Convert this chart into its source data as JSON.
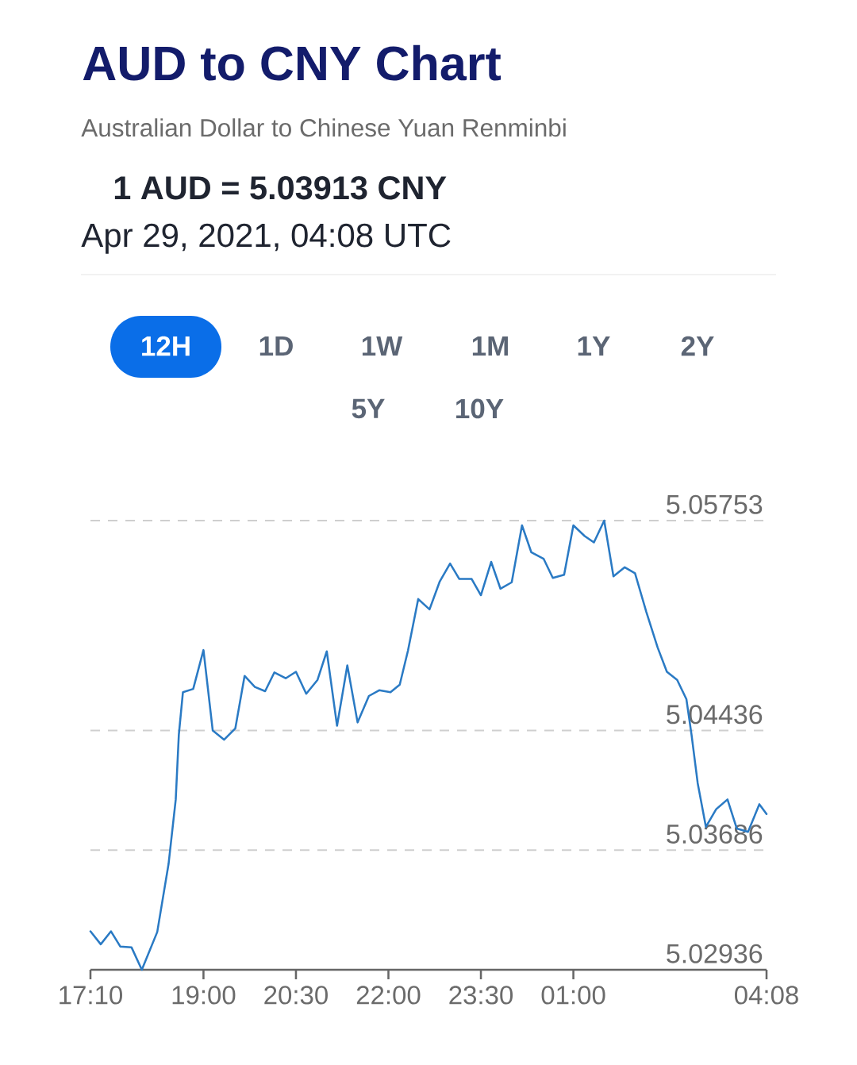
{
  "chart_data": {
    "type": "line",
    "title": "AUD to CNY Chart",
    "subtitle": "Australian Dollar to Chinese Yuan Renminbi",
    "annotations": [
      "1 AUD = 5.03913 CNY",
      "Apr 29, 2021, 04:08 UTC",
      "12H",
      "1D",
      "1W",
      "1M",
      "1Y",
      "2Y",
      "5Y",
      "10Y"
    ],
    "x": [
      "2021-04-28T17:10",
      "2021-04-28T17:20",
      "2021-04-28T17:30",
      "2021-04-28T17:39",
      "2021-04-28T17:50",
      "2021-04-28T18:00",
      "2021-04-28T18:15",
      "2021-04-28T18:26",
      "2021-04-28T18:33",
      "2021-04-28T18:36",
      "2021-04-28T18:40",
      "2021-04-28T18:50",
      "2021-04-28T19:00",
      "2021-04-28T19:09",
      "2021-04-28T19:20",
      "2021-04-28T19:31",
      "2021-04-28T19:40",
      "2021-04-28T19:50",
      "2021-04-28T20:00",
      "2021-04-28T20:09",
      "2021-04-28T20:20",
      "2021-04-28T20:30",
      "2021-04-28T20:40",
      "2021-04-28T20:51",
      "2021-04-28T21:00",
      "2021-04-28T21:10",
      "2021-04-28T21:20",
      "2021-04-28T21:30",
      "2021-04-28T21:41",
      "2021-04-28T21:51",
      "2021-04-28T22:02",
      "2021-04-28T22:11",
      "2021-04-28T22:19",
      "2021-04-28T22:29",
      "2021-04-28T22:40",
      "2021-04-28T22:50",
      "2021-04-28T23:00",
      "2021-04-28T23:09",
      "2021-04-28T23:21",
      "2021-04-28T23:30",
      "2021-04-28T23:40",
      "2021-04-28T23:49",
      "2021-04-29T00:00",
      "2021-04-29T00:10",
      "2021-04-29T00:19",
      "2021-04-29T00:31",
      "2021-04-29T00:40",
      "2021-04-29T00:51",
      "2021-04-29T01:00",
      "2021-04-29T01:11",
      "2021-04-29T01:20",
      "2021-04-29T01:30",
      "2021-04-29T01:39",
      "2021-04-29T01:50",
      "2021-04-29T02:00",
      "2021-04-29T02:11",
      "2021-04-29T02:22",
      "2021-04-29T02:31",
      "2021-04-29T02:41",
      "2021-04-29T02:50",
      "2021-04-29T02:55",
      "2021-04-29T03:01",
      "2021-04-29T03:09",
      "2021-04-29T03:19",
      "2021-04-29T03:30",
      "2021-04-29T03:39",
      "2021-04-29T03:50",
      "2021-04-29T04:01",
      "2021-04-29T04:08"
    ],
    "values": [
      5.03177,
      5.03096,
      5.03177,
      5.03082,
      5.03076,
      5.02936,
      5.03173,
      5.03599,
      5.04004,
      5.0441,
      5.04677,
      5.04697,
      5.04941,
      5.04436,
      5.04379,
      5.0445,
      5.04779,
      5.0471,
      5.04683,
      5.04801,
      5.04764,
      5.04805,
      5.04667,
      5.04754,
      5.04933,
      5.04466,
      5.04845,
      5.04487,
      5.04653,
      5.04689,
      5.04677,
      5.04724,
      5.04937,
      5.05261,
      5.05196,
      5.05372,
      5.05484,
      5.05387,
      5.05387,
      5.05285,
      5.05494,
      5.05326,
      5.05366,
      5.05723,
      5.05555,
      5.05514,
      5.05393,
      5.05413,
      5.05723,
      5.05656,
      5.05616,
      5.05753,
      5.05403,
      5.0546,
      5.05423,
      5.0518,
      5.04957,
      5.04805,
      5.04754,
      5.04633,
      5.0441,
      5.04106,
      5.03832,
      5.03943,
      5.04004,
      5.03822,
      5.03801,
      5.03974,
      5.03913
    ],
    "color": "#2a7ac4",
    "xlim": [
      "2021-04-28T17:10",
      "2021-04-29T04:08"
    ],
    "xticks": [
      {
        "value": "2021-04-28T17:10",
        "label": "17:10"
      },
      {
        "value": "2021-04-28T19:00",
        "label": "19:00"
      },
      {
        "value": "2021-04-28T20:30",
        "label": "20:30"
      },
      {
        "value": "2021-04-28T22:00",
        "label": "22:00"
      },
      {
        "value": "2021-04-28T23:30",
        "label": "23:30"
      },
      {
        "value": "2021-04-29T01:00",
        "label": "01:00"
      },
      {
        "value": "2021-04-29T04:08",
        "label": "04:08"
      }
    ],
    "ylim": [
      5.02936,
      5.05753
    ],
    "yticks": [
      5.02936,
      5.03686,
      5.04436,
      5.05753
    ],
    "grid": "y",
    "line_style": "solid"
  }
}
